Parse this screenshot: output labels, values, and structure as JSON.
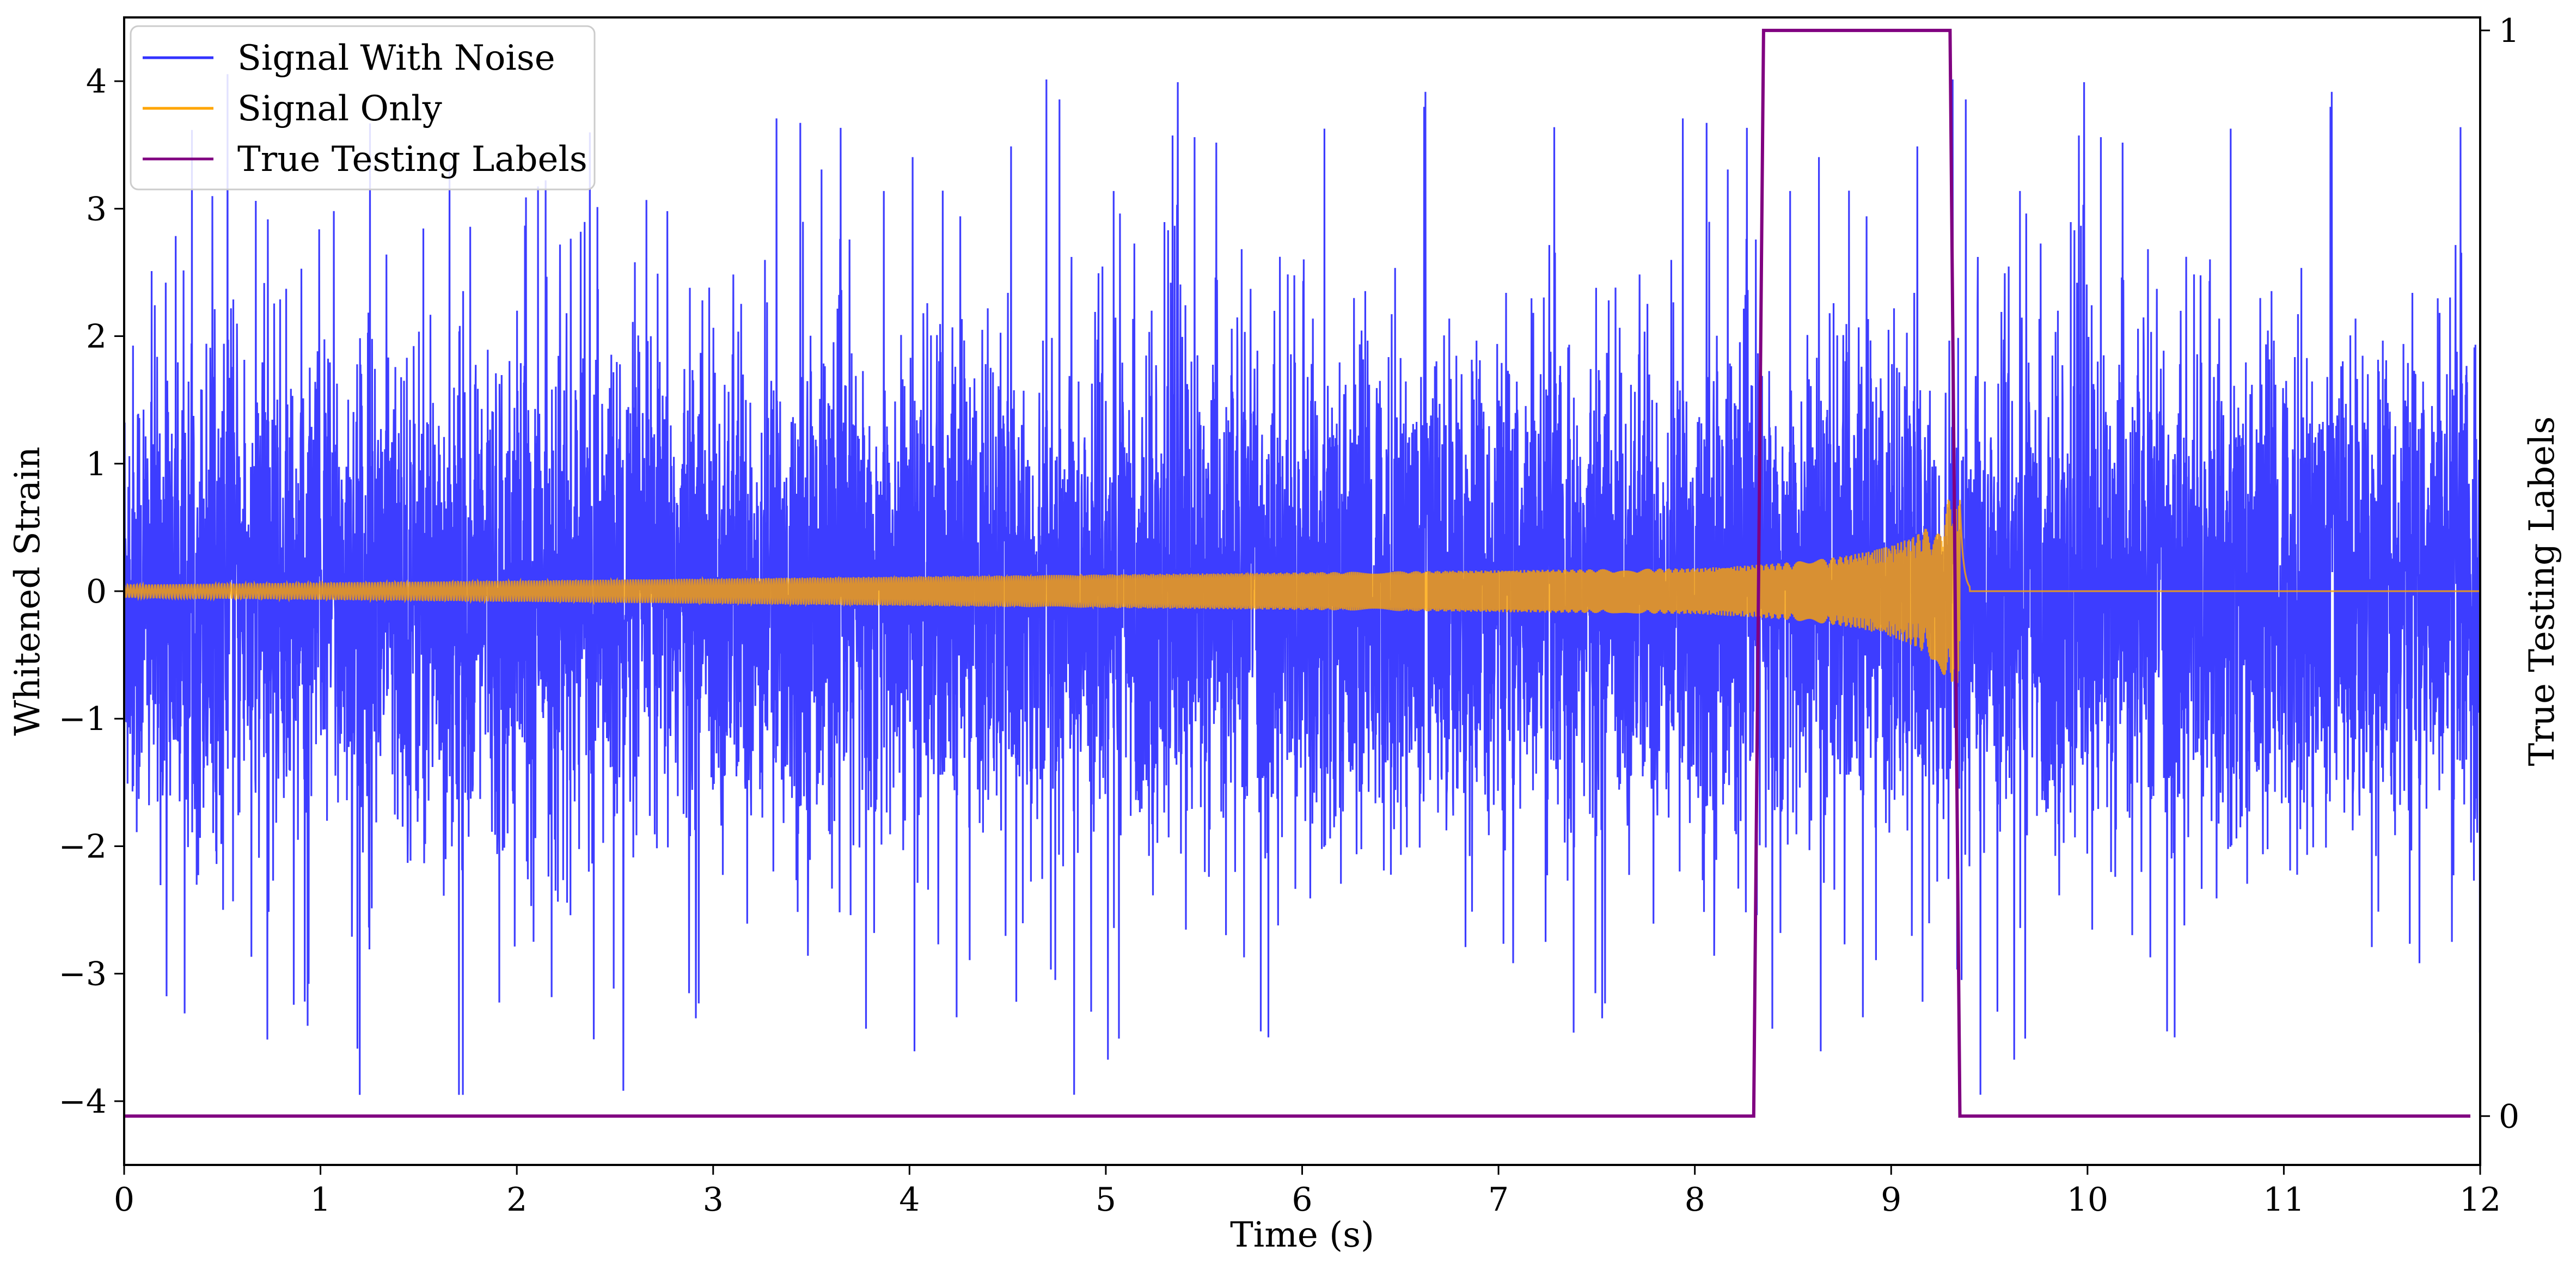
{
  "chart_data": {
    "type": "line",
    "title": "",
    "xlabel": "Time (s)",
    "ylabel": "Whitened Strain",
    "y2label": "True Testing Labels",
    "xlim": [
      0,
      12
    ],
    "ylim": [
      -4.5,
      4.5
    ],
    "y2lim": [
      -0.045,
      1.012
    ],
    "x_ticks": [
      "0",
      "1",
      "2",
      "3",
      "4",
      "5",
      "6",
      "7",
      "8",
      "9",
      "10",
      "11",
      "12"
    ],
    "y_ticks": [
      "−4",
      "−3",
      "−2",
      "−1",
      "0",
      "1",
      "2",
      "3",
      "4"
    ],
    "y2_ticks": [
      "0",
      "1"
    ],
    "grid": false,
    "legend_position": "top-left",
    "series": [
      {
        "name": "Signal With Noise",
        "color": "#3333ff",
        "axis": "left",
        "description_values": {
          "t_start": 0,
          "t_end": 12,
          "typical_range": [
            -2.0,
            2.0
          ],
          "max": 4.25,
          "min": -3.95
        }
      },
      {
        "name": "Signal Only",
        "color": "#ffa500",
        "axis": "left",
        "description_values": {
          "t_start": 0,
          "t_end": 12,
          "chirp_peak_time": 9.35,
          "amplitude_at_0": 0.05,
          "amplitude_at_8": 0.18,
          "peak_amplitude": 0.72,
          "after_merger": 0
        }
      },
      {
        "name": "True Testing Labels",
        "color": "#800080",
        "axis": "right",
        "x": [
          0,
          8.3,
          8.35,
          9.3,
          9.35,
          11.95
        ],
        "values": [
          0,
          0,
          1,
          1,
          0,
          0
        ]
      }
    ]
  }
}
